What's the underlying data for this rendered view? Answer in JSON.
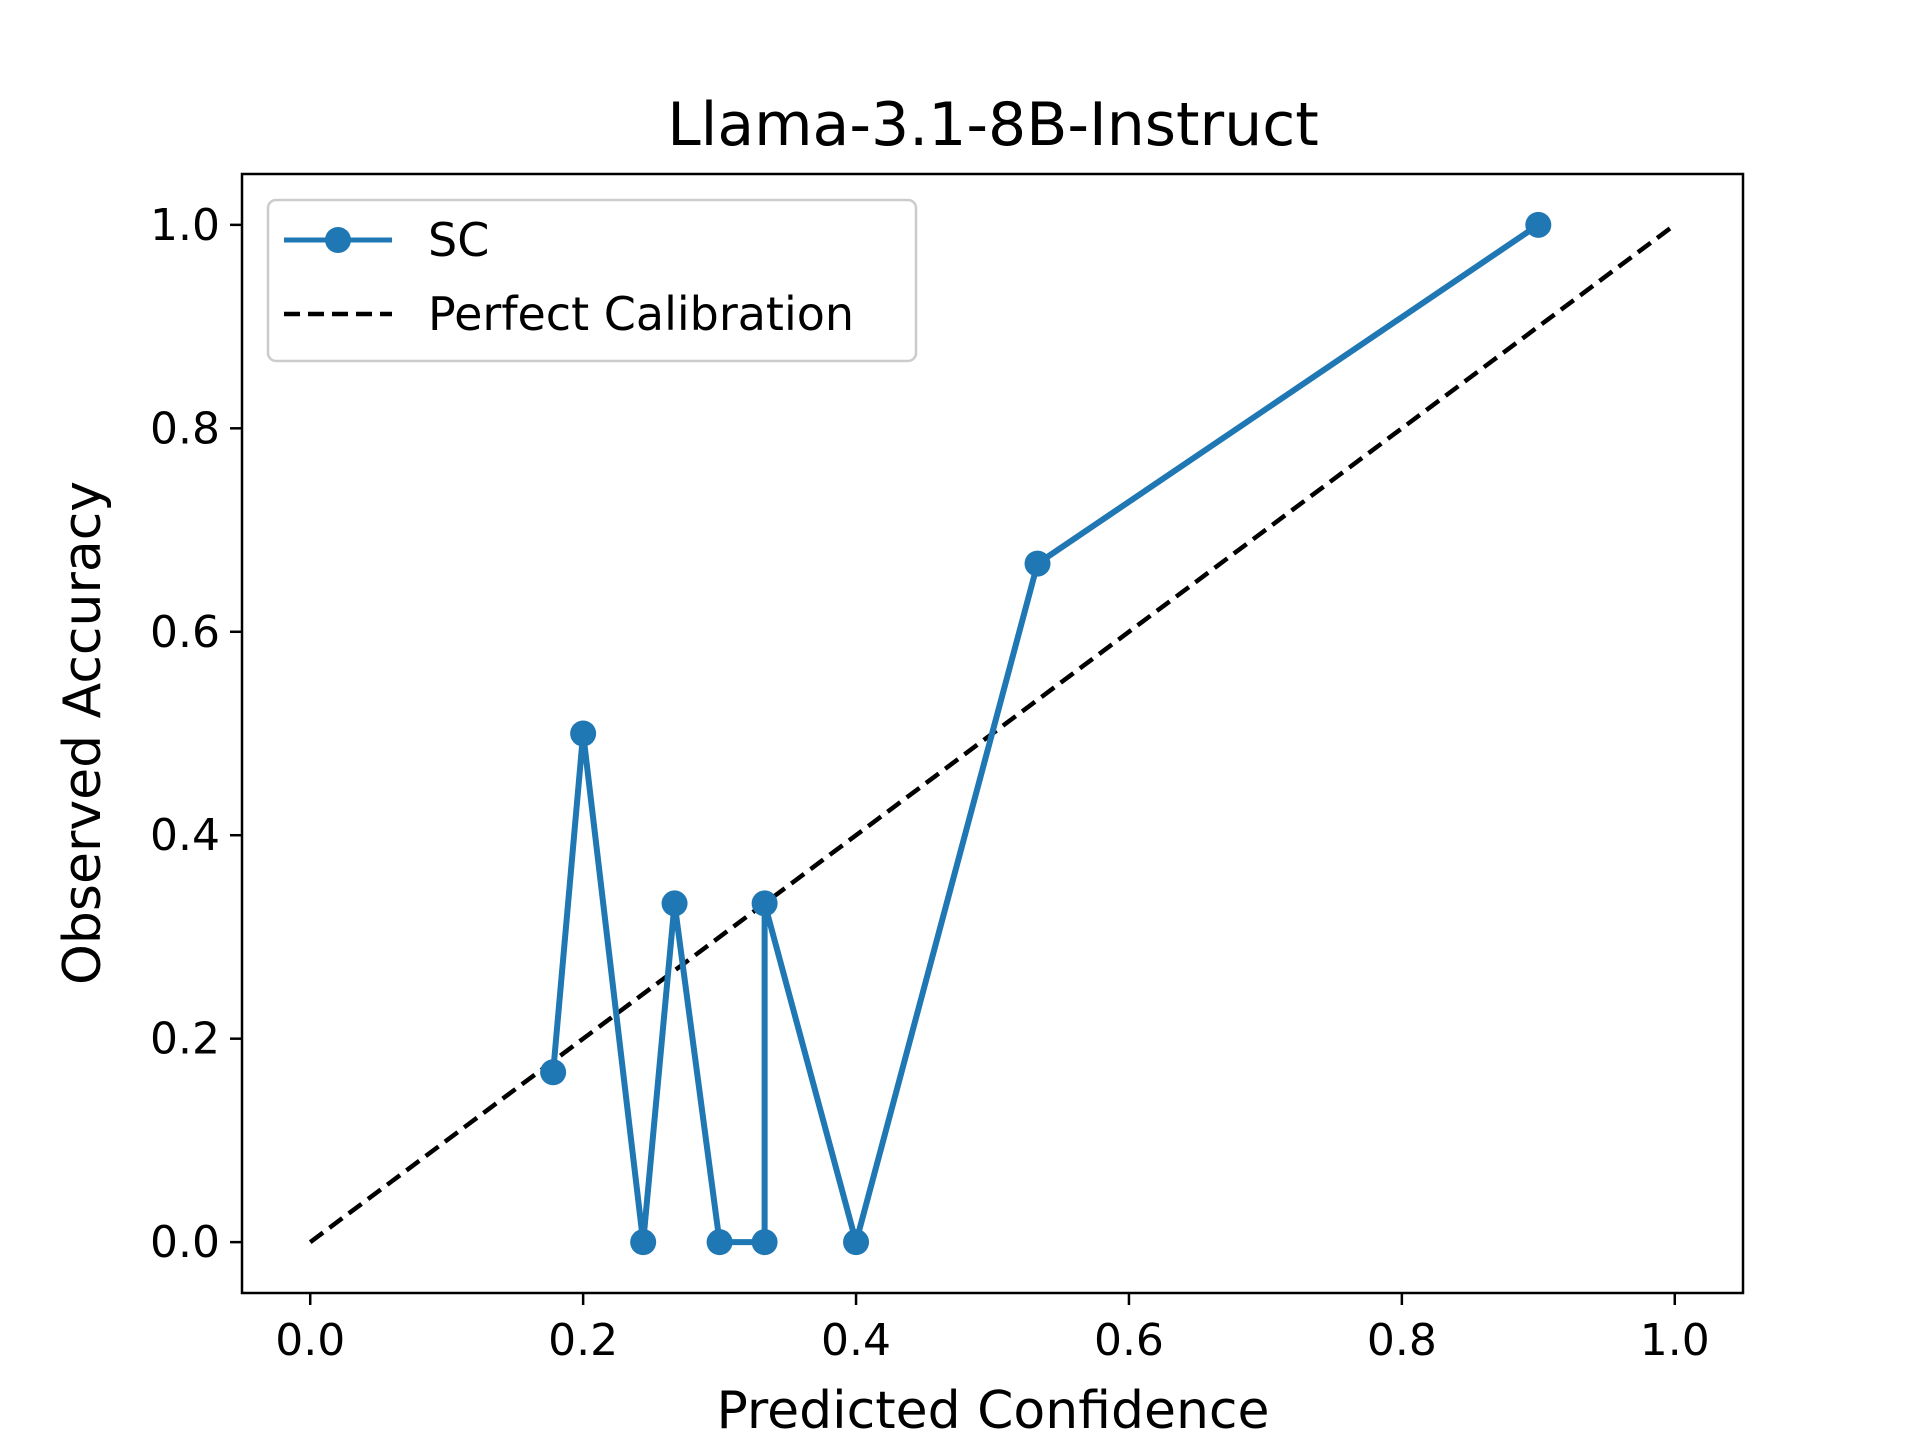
{
  "chart_data": {
    "type": "line",
    "title": "Llama-3.1-8B-Instruct",
    "xlabel": "Predicted Confidence",
    "ylabel": "Observed Accuracy",
    "xlim": [
      -0.05,
      1.05
    ],
    "ylim": [
      -0.05,
      1.05
    ],
    "x_ticks": [
      "0.0",
      "0.2",
      "0.4",
      "0.6",
      "0.8",
      "1.0"
    ],
    "y_ticks": [
      "0.0",
      "0.2",
      "0.4",
      "0.6",
      "0.8",
      "1.0"
    ],
    "grid": false,
    "legend_position": "top-left",
    "series": [
      {
        "name": "SC",
        "style": "solid-with-markers",
        "color": "#1f77b4",
        "x": [
          0.178,
          0.2,
          0.244,
          0.267,
          0.3,
          0.333,
          0.333,
          0.4,
          0.533,
          0.9
        ],
        "y": [
          0.167,
          0.5,
          0.0,
          0.333,
          0.0,
          0.0,
          0.333,
          0.0,
          0.667,
          1.0
        ]
      },
      {
        "name": "Perfect Calibration",
        "style": "dashed",
        "color": "#000000",
        "x": [
          0.0,
          1.0
        ],
        "y": [
          0.0,
          1.0
        ]
      }
    ]
  }
}
